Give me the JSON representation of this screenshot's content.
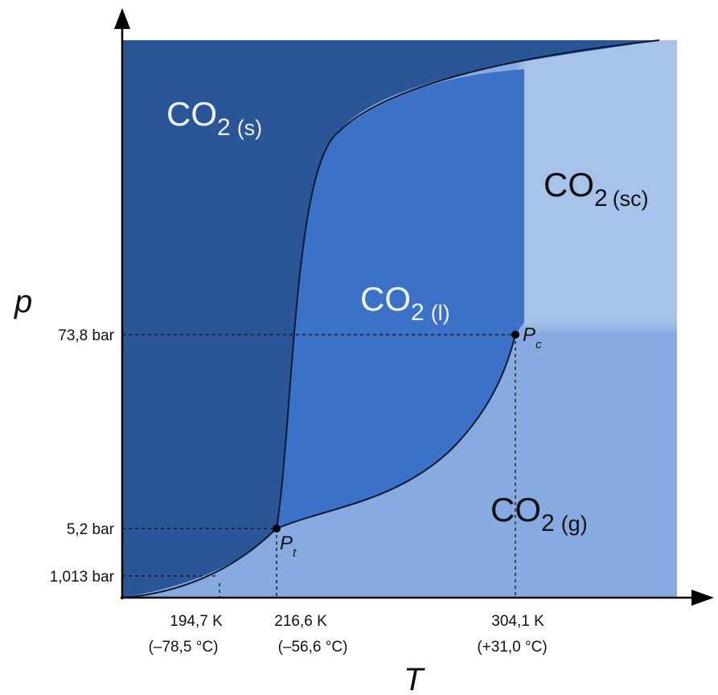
{
  "chart_data": {
    "type": "phase-diagram",
    "axes": {
      "x_label": "T",
      "y_label": "p"
    },
    "regions": [
      {
        "id": "solid",
        "formula": "CO",
        "subscript": "2",
        "phase": "(s)",
        "color": "#2a5597"
      },
      {
        "id": "liquid",
        "formula": "CO",
        "subscript": "2",
        "phase": "(l)",
        "color": "#3b72c8"
      },
      {
        "id": "supercritical",
        "formula": "CO",
        "subscript": "2",
        "phase": "(sc)",
        "color": "#a8c3ea"
      },
      {
        "id": "gas",
        "formula": "CO",
        "subscript": "2",
        "phase": "(g)",
        "color": "#87abe0"
      }
    ],
    "y_ticks": [
      "73,8 bar",
      "5,2 bar",
      "1,013 bar"
    ],
    "x_ticks": [
      {
        "kelvin": "194,7 K",
        "celsius": "(–78,5 °C)"
      },
      {
        "kelvin": "216,6 K",
        "celsius": "(–56,6 °C)"
      },
      {
        "kelvin": "304,1 K",
        "celsius": "(+31,0 °C)"
      }
    ],
    "points": [
      {
        "id": "triple",
        "label": "P",
        "subscript": "t",
        "T": "216,6 K",
        "p": "5,2 bar"
      },
      {
        "id": "critical",
        "label": "P",
        "subscript": "c",
        "T": "304,1 K",
        "p": "73,8 bar"
      }
    ]
  }
}
